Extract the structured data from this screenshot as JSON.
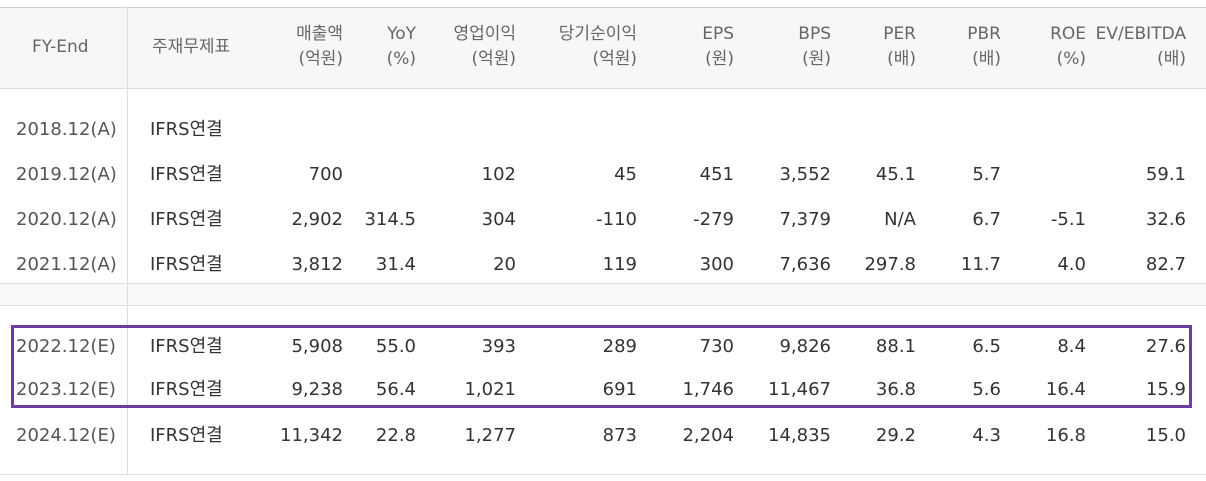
{
  "headers": {
    "fy_end": "FY-End",
    "basis": "주재무제표",
    "columns": [
      {
        "line1": "매출액",
        "line2": "(억원)"
      },
      {
        "line1": "YoY",
        "line2": "(%)"
      },
      {
        "line1": "영업이익",
        "line2": "(억원)"
      },
      {
        "line1": "당기순이익",
        "line2": "(억원)"
      },
      {
        "line1": "EPS",
        "line2": "(원)"
      },
      {
        "line1": "BPS",
        "line2": "(원)"
      },
      {
        "line1": "PER",
        "line2": "(배)"
      },
      {
        "line1": "PBR",
        "line2": "(배)"
      },
      {
        "line1": "ROE",
        "line2": "(%)"
      },
      {
        "line1": "EV/EBITDA",
        "line2": "(배)"
      }
    ]
  },
  "rows": [
    {
      "period": "2018.12(A)",
      "basis": "IFRS연결",
      "values": [
        "",
        "",
        "",
        "",
        "",
        "",
        "",
        "",
        "",
        ""
      ]
    },
    {
      "period": "2019.12(A)",
      "basis": "IFRS연결",
      "values": [
        "700",
        "",
        "102",
        "45",
        "451",
        "3,552",
        "45.1",
        "5.7",
        "",
        "59.1"
      ]
    },
    {
      "period": "2020.12(A)",
      "basis": "IFRS연결",
      "values": [
        "2,902",
        "314.5",
        "304",
        "-110",
        "-279",
        "7,379",
        "N/A",
        "6.7",
        "-5.1",
        "32.6"
      ]
    },
    {
      "period": "2021.12(A)",
      "basis": "IFRS연결",
      "values": [
        "3,812",
        "31.4",
        "20",
        "119",
        "300",
        "7,636",
        "297.8",
        "11.7",
        "4.0",
        "82.7"
      ]
    },
    {
      "period": "2022.12(E)",
      "basis": "IFRS연결",
      "values": [
        "5,908",
        "55.0",
        "393",
        "289",
        "730",
        "9,826",
        "88.1",
        "6.5",
        "8.4",
        "27.6"
      ]
    },
    {
      "period": "2023.12(E)",
      "basis": "IFRS연결",
      "values": [
        "9,238",
        "56.4",
        "1,021",
        "691",
        "1,746",
        "11,467",
        "36.8",
        "5.6",
        "16.4",
        "15.9"
      ]
    },
    {
      "period": "2024.12(E)",
      "basis": "IFRS연결",
      "values": [
        "11,342",
        "22.8",
        "1,277",
        "873",
        "2,204",
        "14,835",
        "29.2",
        "4.3",
        "16.8",
        "15.0"
      ]
    }
  ],
  "highlight_color": "#6b3fa0"
}
